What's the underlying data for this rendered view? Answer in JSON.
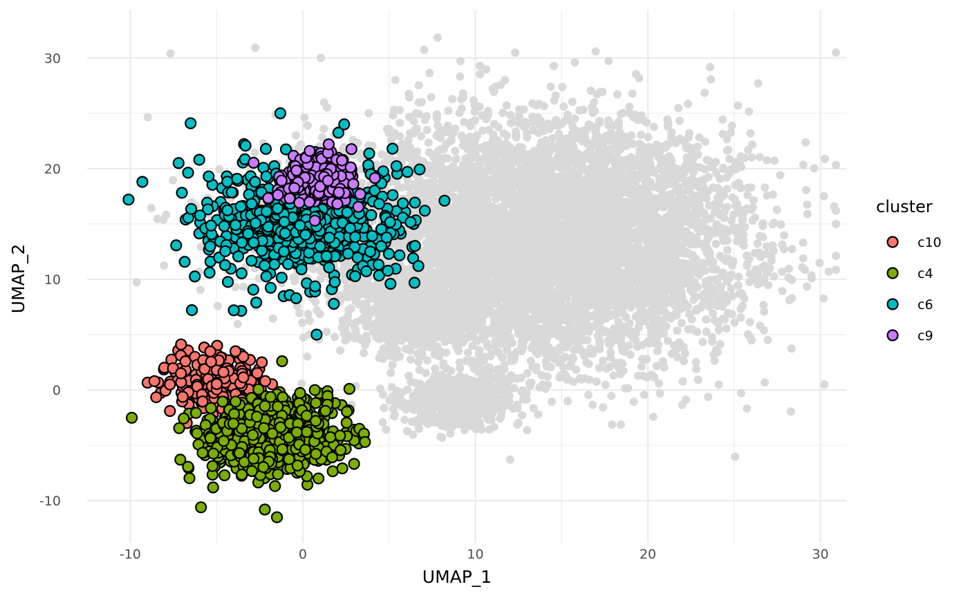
{
  "chart_data": {
    "type": "scatter",
    "title": "",
    "xlabel": "UMAP_1",
    "ylabel": "UMAP_2",
    "xlim": [
      -12.5,
      31.5
    ],
    "ylim": [
      -13.8,
      34.3
    ],
    "x_ticks": [
      -10,
      0,
      10,
      20,
      30
    ],
    "y_ticks": [
      -10,
      0,
      10,
      20,
      30
    ],
    "x_tick_labels": [
      "-10",
      "0",
      "10",
      "20",
      "30"
    ],
    "y_tick_labels": [
      "-10",
      "0",
      "10",
      "20",
      "30"
    ],
    "grid": true,
    "legend": {
      "title": "cluster",
      "placement": "right",
      "entries": [
        {
          "label": "c10",
          "color": "#F8766D"
        },
        {
          "label": "c4",
          "color": "#7CAE00"
        },
        {
          "label": "c6",
          "color": "#00BFC4"
        },
        {
          "label": "c9",
          "color": "#C77CFF"
        }
      ]
    },
    "background_points_color": "#D9D9D9",
    "background_groups": [
      {
        "cx": 13.5,
        "cy": 13.5,
        "sx": 5.5,
        "sy": 5.5,
        "n": 5200
      },
      {
        "cx": 6.5,
        "cy": 7.0,
        "sx": 2.0,
        "sy": 1.8,
        "n": 600
      },
      {
        "cx": 9.0,
        "cy": -1.0,
        "sx": 1.6,
        "sy": 1.2,
        "n": 600
      },
      {
        "cx": 18.0,
        "cy": 13.0,
        "sx": 4.5,
        "sy": 5.0,
        "n": 900
      },
      {
        "cx": 0.5,
        "cy": 15.0,
        "sx": 4.5,
        "sy": 4.0,
        "n": 250
      }
    ],
    "series": [
      {
        "name": "c6",
        "color": "#00BFC4",
        "cx": 0.0,
        "cy": 15.0,
        "sx": 2.8,
        "sy": 2.6,
        "n": 650,
        "outliers": [
          [
            -10.1,
            17.2
          ],
          [
            -6.5,
            24.1
          ],
          [
            -1.3,
            25.0
          ],
          [
            2.4,
            24.0
          ],
          [
            -4.0,
            7.2
          ],
          [
            0.8,
            5.0
          ],
          [
            6.7,
            11.2
          ],
          [
            -9.3,
            18.8
          ],
          [
            -7.2,
            20.5
          ],
          [
            5.2,
            21.8
          ],
          [
            -6.0,
            20.8
          ],
          [
            -2.7,
            7.9
          ]
        ]
      },
      {
        "name": "c9",
        "color": "#C77CFF",
        "cx": 1.0,
        "cy": 19.0,
        "sx": 1.1,
        "sy": 1.0,
        "n": 240,
        "outliers": [
          [
            0.7,
            15.3
          ],
          [
            0.4,
            21.6
          ],
          [
            1.5,
            22.2
          ]
        ]
      },
      {
        "name": "c10",
        "color": "#F8766D",
        "cx": -5.0,
        "cy": 0.5,
        "sx": 1.4,
        "sy": 1.2,
        "n": 280,
        "outliers": [
          [
            -8.6,
            0.8
          ],
          [
            -3.9,
            3.5
          ],
          [
            -7.7,
            -1.9
          ]
        ]
      },
      {
        "name": "c4",
        "color": "#7CAE00",
        "cx": -1.8,
        "cy": -4.0,
        "sx": 2.0,
        "sy": 1.6,
        "n": 750,
        "outliers": [
          [
            -5.9,
            -10.6
          ],
          [
            -1.5,
            -11.5
          ],
          [
            -2.2,
            -10.8
          ],
          [
            3.6,
            -4.7
          ],
          [
            -7.1,
            -6.3
          ],
          [
            2.7,
            0.1
          ],
          [
            -1.2,
            2.6
          ],
          [
            -5.2,
            -8.8
          ]
        ]
      }
    ]
  }
}
